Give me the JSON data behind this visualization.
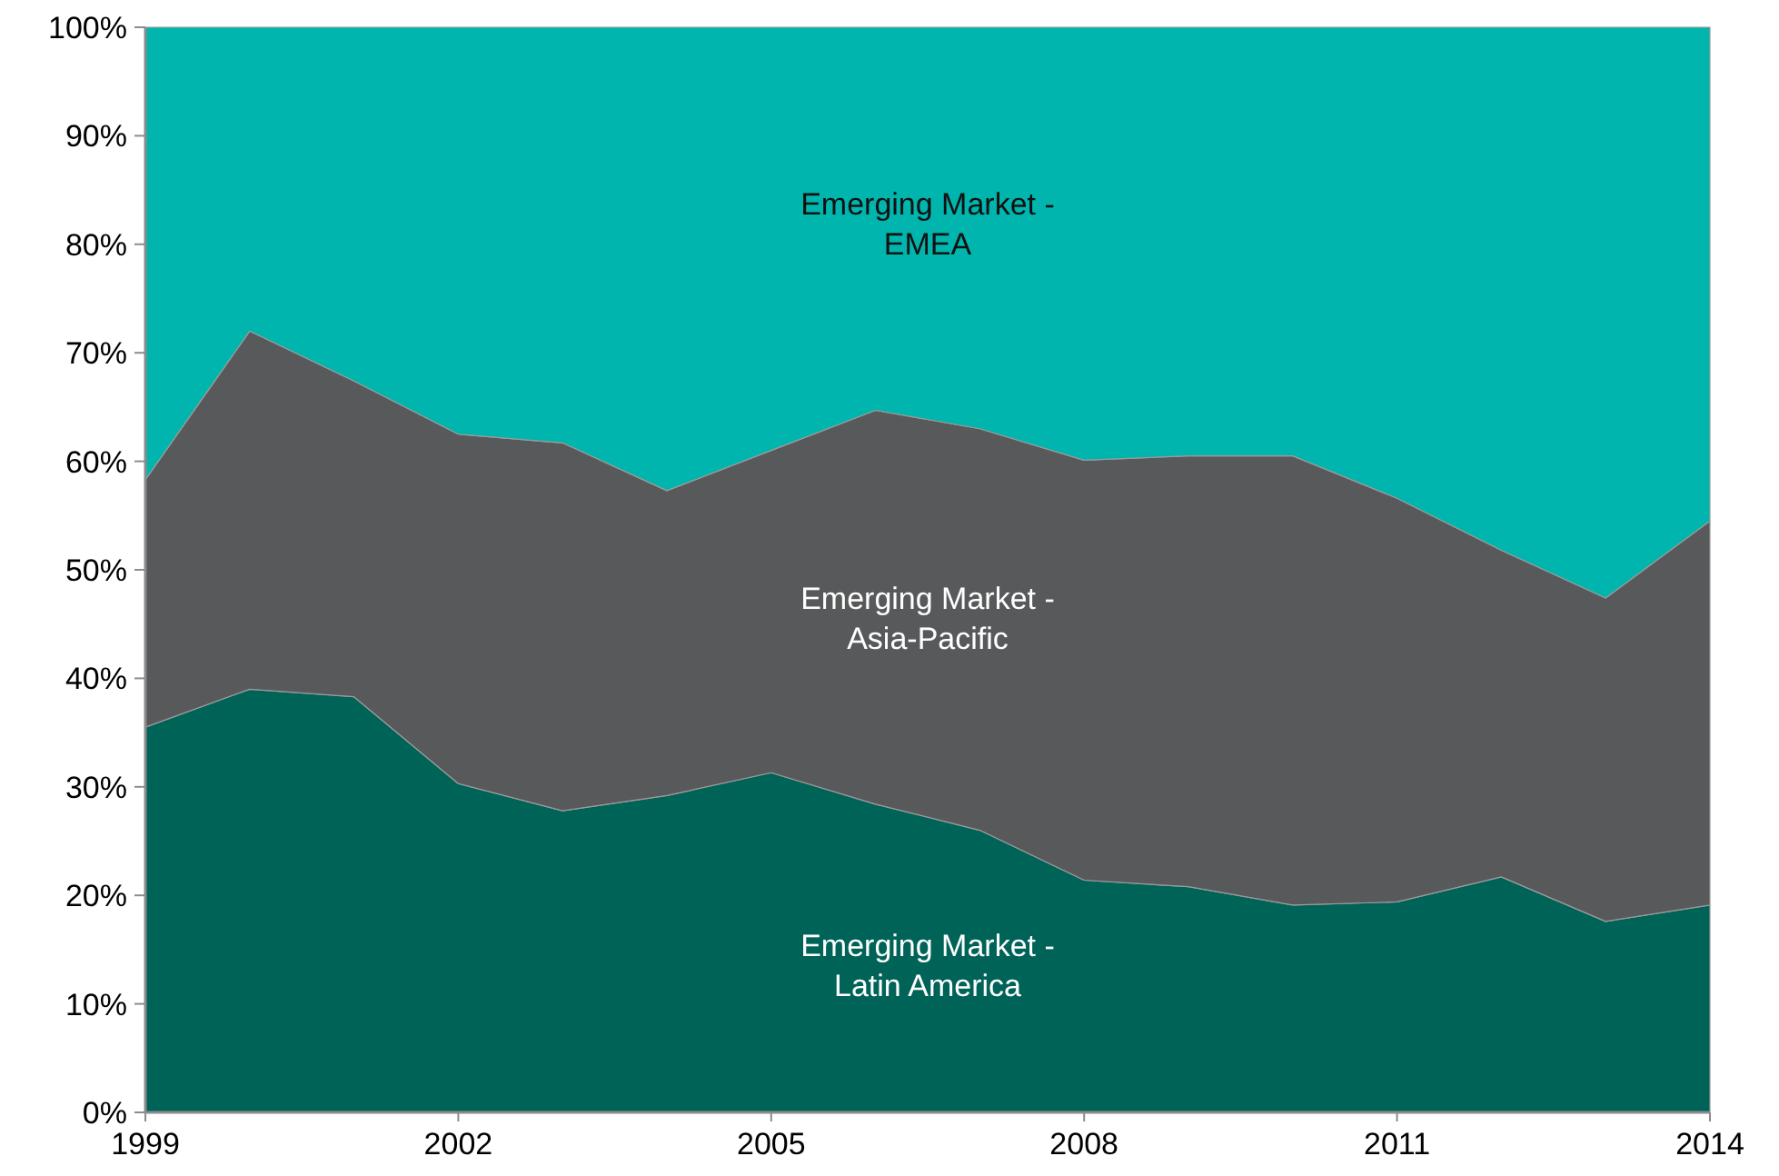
{
  "chart_data": {
    "type": "area",
    "stacked": true,
    "x": [
      1999,
      2000,
      2001,
      2002,
      2003,
      2004,
      2005,
      2006,
      2007,
      2008,
      2009,
      2010,
      2011,
      2012,
      2013,
      2014
    ],
    "series": [
      {
        "name": "Emerging Market - Latin America",
        "color": "#006358",
        "values": [
          35.5,
          39,
          38.3,
          30.3,
          27.8,
          29.2,
          31.3,
          28.4,
          26,
          21.4,
          20.8,
          19.1,
          19.4,
          21.7,
          17.6,
          19.1
        ]
      },
      {
        "name": "Emerging Market - Asia-Pacific",
        "color": "#58595b",
        "values": [
          22.8,
          33,
          29.1,
          32.2,
          33.9,
          28.1,
          29.7,
          36.3,
          37,
          38.7,
          39.7,
          41.4,
          37.2,
          30.1,
          29.8,
          35.4
        ]
      },
      {
        "name": "Emerging Market - EMEA",
        "color": "#00b5ad",
        "values": [
          41.7,
          28,
          32.6,
          37.5,
          38.3,
          42.7,
          39,
          35.3,
          37,
          39.9,
          39.5,
          39.5,
          43.4,
          48.2,
          52.6,
          45.5
        ]
      }
    ],
    "xlim": [
      1999,
      2014
    ],
    "xticks": [
      1999,
      2002,
      2005,
      2008,
      2011,
      2014
    ],
    "ylim": [
      0,
      100
    ],
    "yticks": [
      {
        "value": 0,
        "label": "0%"
      },
      {
        "value": 10,
        "label": "10%"
      },
      {
        "value": 20,
        "label": "20%"
      },
      {
        "value": 30,
        "label": "30%"
      },
      {
        "value": 40,
        "label": "40%"
      },
      {
        "value": 50,
        "label": "50%"
      },
      {
        "value": 60,
        "label": "60%"
      },
      {
        "value": 70,
        "label": "70%"
      },
      {
        "value": 80,
        "label": "80%"
      },
      {
        "value": 90,
        "label": "90%"
      },
      {
        "value": 100,
        "label": "100%"
      }
    ],
    "grid": false
  }
}
